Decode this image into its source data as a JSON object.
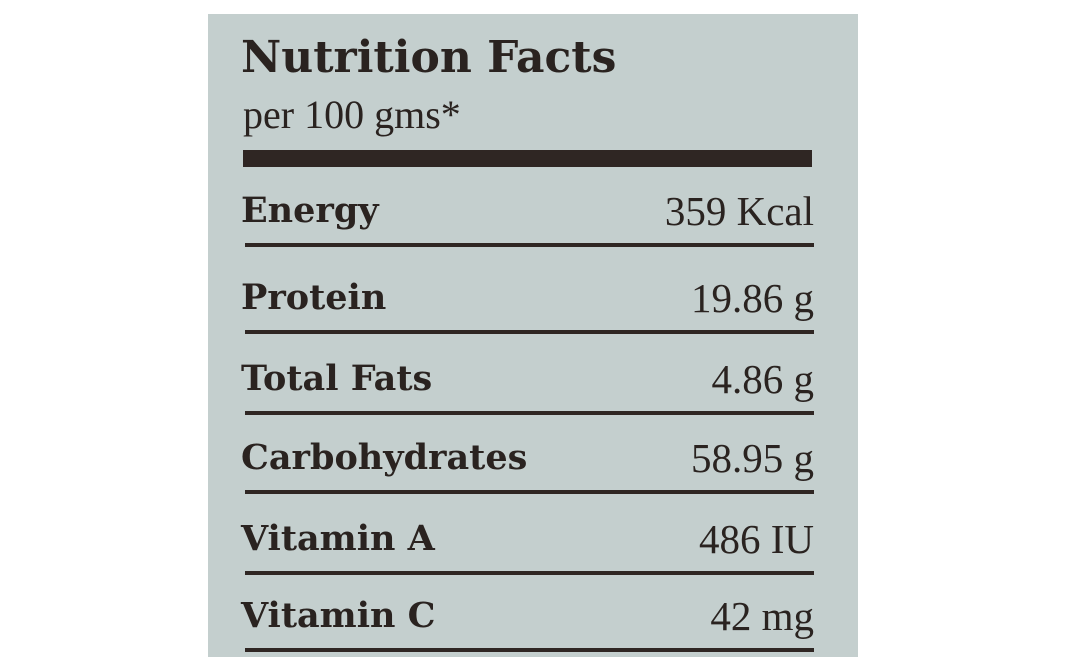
{
  "panel": {
    "title": "Nutrition Facts",
    "subtitle": "per 100 gms*"
  },
  "nutrients": [
    {
      "label": "Energy",
      "value": "359 Kcal"
    },
    {
      "label": "Protein",
      "value": "19.86 g"
    },
    {
      "label": "Total Fats",
      "value": "4.86 g"
    },
    {
      "label": "Carbohydrates",
      "value": "58.95 g"
    },
    {
      "label": "Vitamin A",
      "value": "486 IU"
    },
    {
      "label": "Vitamin C",
      "value": "42 mg"
    }
  ],
  "colors": {
    "panel_background": "#c4cfce",
    "text": "#2a2320",
    "rule": "#2f2623"
  }
}
